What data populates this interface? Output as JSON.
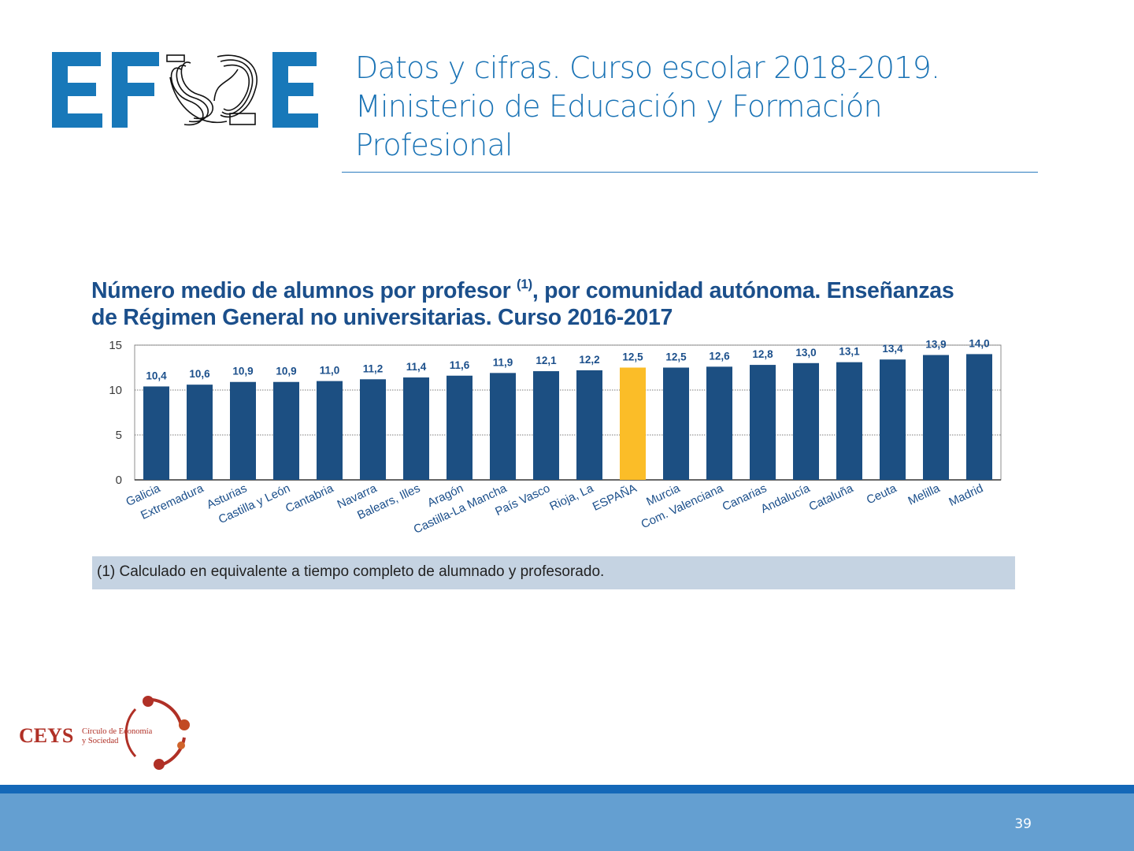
{
  "header": {
    "logo_text": "EFSE",
    "title_lines": [
      "Datos y cifras. Curso escolar 2018-2019.",
      "Ministerio de Educación y Formación",
      "Profesional"
    ]
  },
  "chart_data": {
    "type": "bar",
    "title_line1": "Número medio de alumnos por profesor",
    "title_sup": "(1)",
    "title_line1_rest": ", por comunidad autónoma. Enseñanzas",
    "title_line2": "de Régimen General no universitarias. Curso 2016-2017",
    "categories": [
      "Galicia",
      "Extremadura",
      "Asturias",
      "Castilla y León",
      "Cantabria",
      "Navarra",
      "Balears, Illes",
      "Aragón",
      "Castilla-La Mancha",
      "País Vasco",
      "Rioja, La",
      "ESPAÑA",
      "Murcia",
      "Com. Valenciana",
      "Canarias",
      "Andalucía",
      "Cataluña",
      "Ceuta",
      "Melilla",
      "Madrid"
    ],
    "values": [
      10.4,
      10.6,
      10.9,
      10.9,
      11.0,
      11.2,
      11.4,
      11.6,
      11.9,
      12.1,
      12.2,
      12.5,
      12.5,
      12.6,
      12.8,
      13.0,
      13.1,
      13.4,
      13.9,
      14.0
    ],
    "value_labels": [
      "10,4",
      "10,6",
      "10,9",
      "10,9",
      "11,0",
      "11,2",
      "11,4",
      "11,6",
      "11,9",
      "12,1",
      "12,2",
      "12,5",
      "12,5",
      "12,6",
      "12,8",
      "13,0",
      "13,1",
      "13,4",
      "13,9",
      "14,0"
    ],
    "highlight_category": "ESPAÑA",
    "yticks": [
      0,
      5,
      10,
      15
    ],
    "ylim": [
      0,
      15
    ],
    "grid": true,
    "bar_color": "#1c4f82",
    "highlight_color": "#fbbd28"
  },
  "footnote": "(1) Calculado en equivalente a tiempo completo de alumnado y profesorado.",
  "ceys": {
    "name": "CEYS",
    "subtitle_line1": "Círculo de Economía",
    "subtitle_line2": "y Sociedad"
  },
  "page_number": "39"
}
